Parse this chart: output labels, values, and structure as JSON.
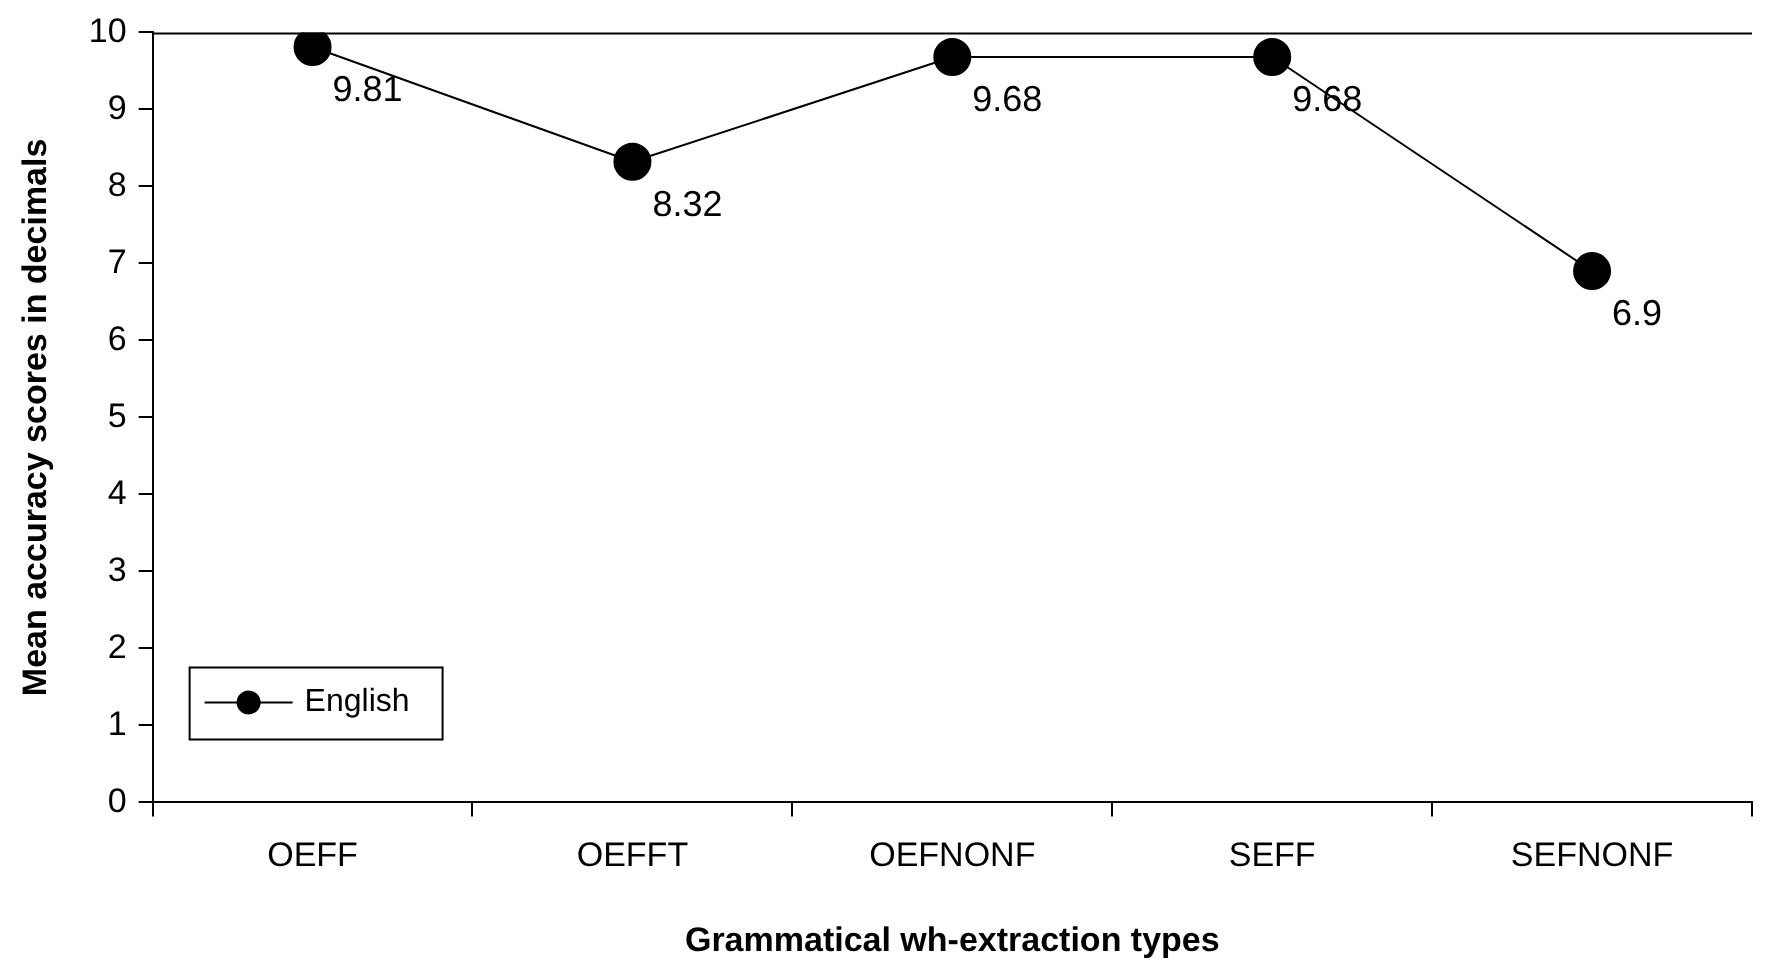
{
  "chart_data": {
    "type": "line",
    "xlabel": "Grammatical wh-extraction types",
    "ylabel": "Mean accuracy scores in decimals",
    "categories": [
      "OEFF",
      "OEFFT",
      "OEFNONF",
      "SEFF",
      "SEFNONF"
    ],
    "series": [
      {
        "name": "English",
        "color": "#000000",
        "values": [
          9.81,
          8.32,
          9.68,
          9.68,
          6.9
        ]
      }
    ],
    "ylim": [
      0,
      10
    ],
    "yticks": [
      0,
      1,
      2,
      3,
      4,
      5,
      6,
      7,
      8,
      9,
      10
    ],
    "grid": false,
    "legend": "bottom left",
    "marker": "circle",
    "line_style": "solid",
    "data_labels": true
  }
}
